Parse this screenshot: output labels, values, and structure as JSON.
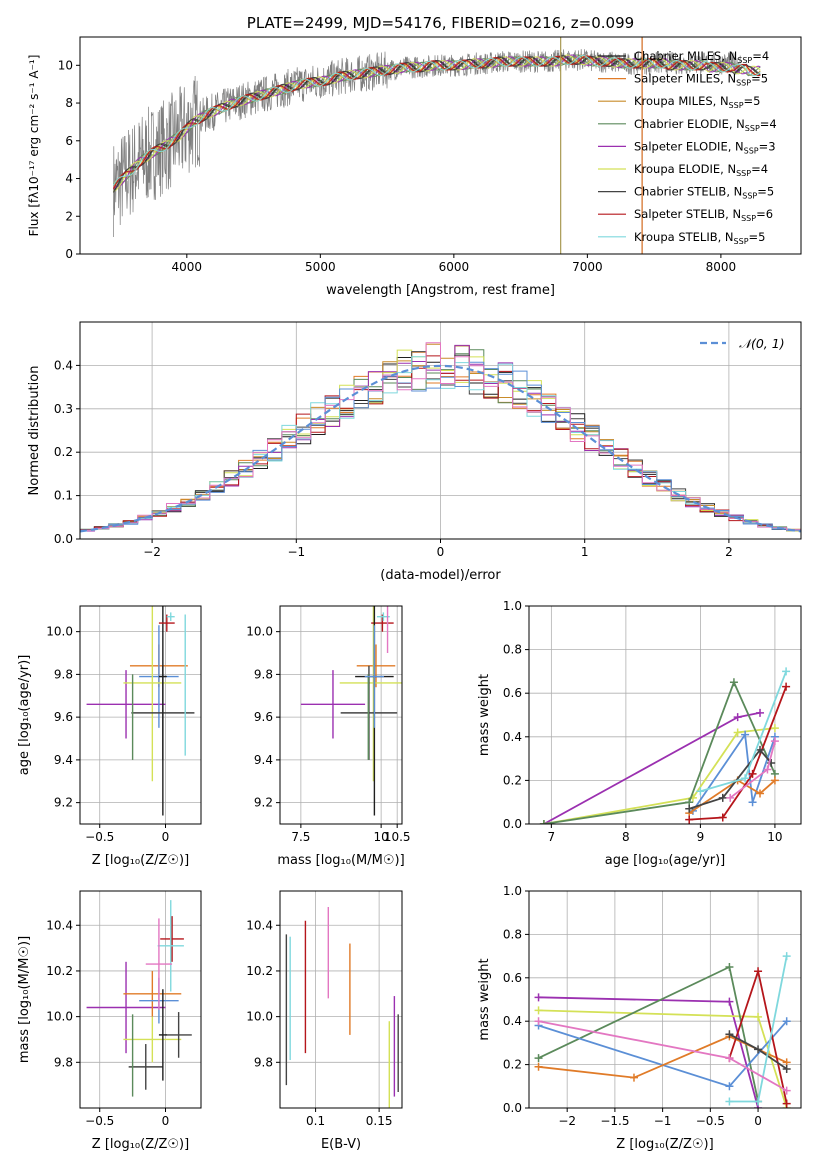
{
  "chart_data": [
    {
      "id": "spectrum",
      "type": "line",
      "title": "PLATE=2499, MJD=54176, FIBERID=0216, z=0.099",
      "xlabel": "wavelength [Angstrom, rest frame]",
      "ylabel": "Flux [f_λ10^-17 erg cm^-2 s^-1 A^-1]",
      "xlim": [
        3200,
        8600
      ],
      "ylim": [
        0,
        11.5
      ],
      "xticks": [
        4000,
        5000,
        6000,
        7000,
        8000
      ],
      "yticks": [
        0,
        2,
        4,
        6,
        8,
        10
      ],
      "data_trend": {
        "x": [
          3450,
          3550,
          3650,
          3750,
          3850,
          3950,
          4050,
          4150,
          4250,
          4350,
          4450,
          4550,
          4650,
          4750,
          4850,
          4950,
          5050,
          5150,
          5250,
          5350,
          5450,
          5550,
          5650,
          5750,
          5850,
          5950,
          6050,
          6150,
          6250,
          6350,
          6450,
          6550,
          6650,
          6750,
          6850,
          6950,
          7050,
          7150,
          7250,
          7350,
          7450
        ],
        "y": [
          3.5,
          4.2,
          4.9,
          5.4,
          5.8,
          6.3,
          7.0,
          7.4,
          7.7,
          8.0,
          8.2,
          8.4,
          8.6,
          8.8,
          9.0,
          9.1,
          9.2,
          9.4,
          9.5,
          9.6,
          9.7,
          9.8,
          9.9,
          9.9,
          10.0,
          10.0,
          10.0,
          10.1,
          10.1,
          10.2,
          10.2,
          10.2,
          10.2,
          10.2,
          10.3,
          10.3,
          10.2,
          10.2,
          10.1,
          10.1,
          10.1
        ]
      },
      "model_tail_x": [
        7500,
        7600,
        7700,
        7800,
        7900,
        8000,
        8100,
        8200,
        8300
      ],
      "model_tail_y": [
        10.1,
        10.0,
        10.0,
        10.0,
        9.9,
        9.9,
        9.8,
        9.7,
        9.6
      ],
      "spike_lines": [
        {
          "x": 6800,
          "color": "#a89a52"
        },
        {
          "x": 7410,
          "color": "#d2691e"
        }
      ],
      "legend": [
        {
          "label": "Chabrier MILES, N_SSP=4",
          "color": "#1f1f1f"
        },
        {
          "label": "Salpeter MILES, N_SSP=5",
          "color": "#e07b28"
        },
        {
          "label": "Kroupa MILES, N_SSP=5",
          "color": "#c98c2a"
        },
        {
          "label": "Chabrier ELODIE, N_SSP=4",
          "color": "#5b8a5b"
        },
        {
          "label": "Salpeter ELODIE, N_SSP=3",
          "color": "#9b30b0"
        },
        {
          "label": "Kroupa ELODIE, N_SSP=4",
          "color": "#d4e157"
        },
        {
          "label": "Chabrier STELIB, N_SSP=5",
          "color": "#444444"
        },
        {
          "label": "Salpeter STELIB, N_SSP=6",
          "color": "#b5161b"
        },
        {
          "label": "Kroupa STELIB, N_SSP=5",
          "color": "#7fd8dd"
        }
      ]
    },
    {
      "id": "residuals",
      "type": "line",
      "xlabel": "(data-model)/error",
      "ylabel": "Normed distribution",
      "xlim": [
        -2.5,
        2.5
      ],
      "ylim": [
        0,
        0.5
      ],
      "xticks": [
        -2,
        -1,
        0,
        1,
        2
      ],
      "yticks": [
        0.0,
        0.1,
        0.2,
        0.3,
        0.4
      ],
      "legend": "N(0, 1)",
      "gaussian": {
        "mean": 0,
        "sigma": 1,
        "color": "#5b8fd6"
      },
      "bin_width": 0.1,
      "colors": [
        "#1f1f1f",
        "#e07b28",
        "#c98c2a",
        "#5b8a5b",
        "#9b30b0",
        "#d4e157",
        "#444444",
        "#b5161b",
        "#7fd8dd",
        "#5b8fd6",
        "#e377c2"
      ]
    },
    {
      "id": "age-vs-z",
      "type": "scatter",
      "xlabel": "Z [log10(Z/Z⊙)]",
      "ylabel": "age [log10(age/yr)]",
      "xlim": [
        -0.65,
        0.27
      ],
      "ylim": [
        9.1,
        10.12
      ],
      "xticks": [
        -0.5,
        0.0
      ],
      "yticks": [
        9.2,
        9.4,
        9.6,
        9.8,
        10.0
      ],
      "points": [
        {
          "x": -0.3,
          "y": 9.66,
          "xerr": 0.3,
          "yerr": 0.16,
          "color": "#9b30b0"
        },
        {
          "x": -0.05,
          "y": 9.84,
          "xerr": 0.22,
          "yerr": 0.1,
          "color": "#e07b28"
        },
        {
          "x": -0.05,
          "y": 9.79,
          "xerr": 0.15,
          "yerr": 0.24,
          "color": "#5b8fd6"
        },
        {
          "x": -0.1,
          "y": 9.76,
          "xerr": 0.22,
          "yerr": 0.46,
          "color": "#d4e157"
        },
        {
          "x": -0.02,
          "y": 9.62,
          "xerr": 0.24,
          "yerr": 0.22,
          "color": "#444444"
        },
        {
          "x": -0.02,
          "y": 9.79,
          "xerr": 0.03,
          "yerr": 0.65,
          "color": "#1f1f1f"
        },
        {
          "x": 0.01,
          "y": 10.04,
          "xerr": 0.06,
          "yerr": 0.04,
          "color": "#b5161b"
        },
        {
          "x": 0.04,
          "y": 10.07,
          "xerr": 0.03,
          "yerr": 0.02,
          "color": "#7fd8dd"
        },
        {
          "x": -0.25,
          "y": 9.6,
          "xerr": 0.0,
          "yerr": 0.2,
          "color": "#5b8a5b"
        },
        {
          "x": 0.15,
          "y": 9.75,
          "xerr": 0.0,
          "yerr": 0.33,
          "color": "#7fd8dd"
        }
      ]
    },
    {
      "id": "age-vs-mass",
      "type": "scatter",
      "xlabel": "mass [log10(M/M⊙)]",
      "ylabel": "",
      "xlim": [
        6.85,
        10.65
      ],
      "ylim": [
        9.1,
        10.12
      ],
      "xticks": [
        7.5,
        10.0,
        10.5
      ],
      "ytick_labels_only": true,
      "yticks": [
        9.2,
        9.4,
        9.6,
        9.8,
        10.0
      ],
      "points": [
        {
          "x": 8.5,
          "y": 9.66,
          "xerr": 1.0,
          "yerr": 0.16,
          "color": "#9b30b0"
        },
        {
          "x": 9.84,
          "y": 9.84,
          "xerr": 0.6,
          "yerr": 0.1,
          "color": "#e07b28"
        },
        {
          "x": 9.76,
          "y": 9.76,
          "xerr": 1.05,
          "yerr": 0.46,
          "color": "#d4e157"
        },
        {
          "x": 9.62,
          "y": 9.62,
          "xerr": 0.88,
          "yerr": 0.22,
          "color": "#444444"
        },
        {
          "x": 10.04,
          "y": 10.04,
          "xerr": 0.35,
          "yerr": 0.04,
          "color": "#b5161b"
        },
        {
          "x": 10.07,
          "y": 10.07,
          "xerr": 0.2,
          "yerr": 0.02,
          "color": "#7fd8dd"
        },
        {
          "x": 9.6,
          "y": 9.6,
          "xerr": 0.0,
          "yerr": 0.2,
          "color": "#5b8a5b"
        },
        {
          "x": 9.79,
          "y": 9.79,
          "xerr": 0.6,
          "yerr": 0.65,
          "color": "#1f1f1f"
        },
        {
          "x": 9.79,
          "y": 9.79,
          "xerr": 0.3,
          "yerr": 0.24,
          "color": "#5b8fd6"
        },
        {
          "x": 10.2,
          "y": 10.2,
          "xerr": 0.0,
          "yerr": 0.3,
          "color": "#e377c2"
        }
      ]
    },
    {
      "id": "weight-vs-age",
      "type": "line",
      "xlabel": "age [log10(age/yr)]",
      "ylabel": "mass weight",
      "xlim": [
        6.7,
        10.35
      ],
      "ylim": [
        0,
        1.0
      ],
      "xticks": [
        7,
        8,
        9,
        10
      ],
      "yticks": [
        0.0,
        0.2,
        0.4,
        0.6,
        0.8,
        1.0
      ],
      "series": [
        {
          "color": "#9b30b0",
          "points": [
            [
              6.9,
              0.0
            ],
            [
              9.5,
              0.49
            ],
            [
              9.8,
              0.51
            ]
          ]
        },
        {
          "color": "#d4e157",
          "points": [
            [
              6.9,
              0.0
            ],
            [
              8.9,
              0.12
            ],
            [
              9.5,
              0.42
            ],
            [
              10.0,
              0.44
            ]
          ]
        },
        {
          "color": "#5b8a5b",
          "points": [
            [
              6.9,
              0.0
            ],
            [
              8.85,
              0.1
            ],
            [
              9.45,
              0.65
            ],
            [
              10.0,
              0.23
            ]
          ]
        },
        {
          "color": "#5b8fd6",
          "points": [
            [
              8.9,
              0.06
            ],
            [
              9.6,
              0.41
            ],
            [
              9.7,
              0.1
            ],
            [
              10.0,
              0.4
            ]
          ]
        },
        {
          "color": "#e07b28",
          "points": [
            [
              8.85,
              0.05
            ],
            [
              9.5,
              0.2
            ],
            [
              9.8,
              0.14
            ],
            [
              10.0,
              0.2
            ]
          ]
        },
        {
          "color": "#b5161b",
          "points": [
            [
              8.85,
              0.02
            ],
            [
              9.3,
              0.03
            ],
            [
              9.7,
              0.23
            ],
            [
              10.15,
              0.63
            ]
          ]
        },
        {
          "color": "#444444",
          "points": [
            [
              8.85,
              0.07
            ],
            [
              9.3,
              0.12
            ],
            [
              9.8,
              0.34
            ],
            [
              9.95,
              0.28
            ]
          ]
        },
        {
          "color": "#7fd8dd",
          "points": [
            [
              9.0,
              0.15
            ],
            [
              9.6,
              0.21
            ],
            [
              10.15,
              0.7
            ]
          ]
        },
        {
          "color": "#e377c2",
          "points": [
            [
              9.4,
              0.12
            ],
            [
              9.9,
              0.25
            ],
            [
              10.0,
              0.38
            ]
          ]
        }
      ]
    },
    {
      "id": "mass-vs-z",
      "type": "scatter",
      "xlabel": "Z [log10(Z/Z⊙)]",
      "ylabel": "mass [log10(M/M⊙)]",
      "xlim": [
        -0.65,
        0.27
      ],
      "ylim": [
        9.6,
        10.55
      ],
      "xticks": [
        -0.5,
        0.0
      ],
      "yticks": [
        9.8,
        10.0,
        10.2,
        10.4
      ],
      "points": [
        {
          "x": -0.3,
          "y": 10.04,
          "xerr": 0.3,
          "yerr": 0.2,
          "color": "#9b30b0"
        },
        {
          "x": -0.1,
          "y": 10.1,
          "xerr": 0.22,
          "yerr": 0.1,
          "color": "#e07b28"
        },
        {
          "x": -0.05,
          "y": 10.07,
          "xerr": 0.15,
          "yerr": 0.1,
          "color": "#5b8fd6"
        },
        {
          "x": -0.1,
          "y": 9.9,
          "xerr": 0.22,
          "yerr": 0.1,
          "color": "#d4e157"
        },
        {
          "x": -0.15,
          "y": 9.78,
          "xerr": 0.13,
          "yerr": 0.1,
          "color": "#444444"
        },
        {
          "x": 0.1,
          "y": 9.92,
          "xerr": 0.1,
          "yerr": 0.1,
          "color": "#444444"
        },
        {
          "x": -0.02,
          "y": 9.92,
          "xerr": 0.03,
          "yerr": 0.2,
          "color": "#1f1f1f"
        },
        {
          "x": 0.05,
          "y": 10.34,
          "xerr": 0.09,
          "yerr": 0.1,
          "color": "#b5161b"
        },
        {
          "x": 0.04,
          "y": 10.31,
          "xerr": 0.1,
          "yerr": 0.2,
          "color": "#7fd8dd"
        },
        {
          "x": -0.05,
          "y": 10.23,
          "xerr": 0.1,
          "yerr": 0.2,
          "color": "#e377c2"
        },
        {
          "x": -0.25,
          "y": 9.83,
          "xerr": 0.0,
          "yerr": 0.18,
          "color": "#5b8a5b"
        }
      ]
    },
    {
      "id": "mass-vs-ebv",
      "type": "scatter",
      "xlabel": "E(B-V)",
      "ylabel": "",
      "xlim": [
        0.072,
        0.168
      ],
      "ylim": [
        9.6,
        10.55
      ],
      "xticks": [
        0.1,
        0.15
      ],
      "yticks": [
        9.8,
        10.0,
        10.2,
        10.4
      ],
      "points": [
        {
          "x": 0.077,
          "y": 10.03,
          "yerr": 0.33,
          "color": "#444444"
        },
        {
          "x": 0.08,
          "y": 10.08,
          "yerr": 0.27,
          "color": "#7fd8dd"
        },
        {
          "x": 0.092,
          "y": 10.13,
          "yerr": 0.29,
          "color": "#b5161b"
        },
        {
          "x": 0.11,
          "y": 10.28,
          "yerr": 0.2,
          "color": "#e377c2"
        },
        {
          "x": 0.127,
          "y": 10.12,
          "yerr": 0.2,
          "color": "#e07b28"
        },
        {
          "x": 0.158,
          "y": 9.79,
          "yerr": 0.19,
          "color": "#d4e157"
        },
        {
          "x": 0.162,
          "y": 9.87,
          "yerr": 0.22,
          "color": "#9b30b0"
        },
        {
          "x": 0.165,
          "y": 9.84,
          "yerr": 0.17,
          "color": "#444444"
        }
      ]
    },
    {
      "id": "weight-vs-z",
      "type": "line",
      "xlabel": "Z [log10(Z/Z⊙)]",
      "ylabel": "mass weight",
      "xlim": [
        -2.4,
        0.45
      ],
      "ylim": [
        0,
        1.0
      ],
      "xticks": [
        -2.0,
        -1.5,
        -1.0,
        -0.5,
        0.0
      ],
      "yticks": [
        0.0,
        0.2,
        0.4,
        0.6,
        0.8,
        1.0
      ],
      "series": [
        {
          "color": "#9b30b0",
          "points": [
            [
              -2.3,
              0.51
            ],
            [
              -0.3,
              0.49
            ],
            [
              0.0,
              0.0
            ]
          ]
        },
        {
          "color": "#d4e157",
          "points": [
            [
              -2.3,
              0.45
            ],
            [
              0.0,
              0.42
            ],
            [
              0.3,
              0.0
            ]
          ]
        },
        {
          "color": "#5b8a5b",
          "points": [
            [
              -2.3,
              0.23
            ],
            [
              -0.3,
              0.65
            ],
            [
              0.0,
              0.03
            ]
          ]
        },
        {
          "color": "#5b8fd6",
          "points": [
            [
              -2.3,
              0.38
            ],
            [
              -0.3,
              0.1
            ],
            [
              0.3,
              0.4
            ]
          ]
        },
        {
          "color": "#e07b28",
          "points": [
            [
              -2.3,
              0.19
            ],
            [
              -1.3,
              0.14
            ],
            [
              -0.3,
              0.33
            ],
            [
              0.3,
              0.21
            ]
          ]
        },
        {
          "color": "#b5161b",
          "points": [
            [
              -0.3,
              0.23
            ],
            [
              0.0,
              0.63
            ],
            [
              0.3,
              0.02
            ]
          ]
        },
        {
          "color": "#444444",
          "points": [
            [
              -0.3,
              0.34
            ],
            [
              0.0,
              0.27
            ],
            [
              0.3,
              0.18
            ]
          ]
        },
        {
          "color": "#7fd8dd",
          "points": [
            [
              -0.3,
              0.03
            ],
            [
              0.0,
              0.03
            ],
            [
              0.3,
              0.7
            ]
          ]
        },
        {
          "color": "#e377c2",
          "points": [
            [
              -2.3,
              0.4
            ],
            [
              -0.3,
              0.23
            ],
            [
              0.3,
              0.08
            ]
          ]
        }
      ]
    }
  ]
}
